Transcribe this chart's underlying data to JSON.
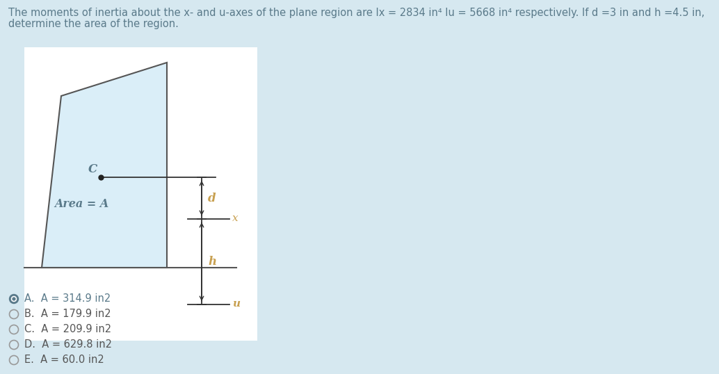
{
  "background_color": "#d6e8f0",
  "title_line1": "The moments of inertia about the x- and u-axes of the plane region are Ix = 2834 in⁴ Iu = 5668 in⁴ respectively. If d =3 in and h =4.5 in,",
  "title_line2": "determine the area of the region.",
  "title_color": "#5a7a8a",
  "title_fontsize": 10.5,
  "shape_fill": "#daeef8",
  "shape_edge": "#555555",
  "diagram_bg": "#ffffff",
  "centroid_label": "C",
  "area_label": "Area = A",
  "d_label": "d",
  "h_label": "h",
  "x_label": "x",
  "u_label": "u",
  "options": [
    {
      "letter": "A",
      "text": "A = 314.9 in2",
      "selected": true
    },
    {
      "letter": "B",
      "text": "A = 179.9 in2",
      "selected": false
    },
    {
      "letter": "C",
      "text": "A = 209.9 in2",
      "selected": false
    },
    {
      "letter": "D",
      "text": "A = 629.8 in2",
      "selected": false
    },
    {
      "letter": "E",
      "text": "A = 60.0 in2",
      "selected": false
    }
  ],
  "option_color": "#555555",
  "option_selected_color": "#5a7a8a",
  "option_fontsize": 10.5,
  "label_color": "#5a7a8a",
  "axis_label_color": "#c8a050"
}
